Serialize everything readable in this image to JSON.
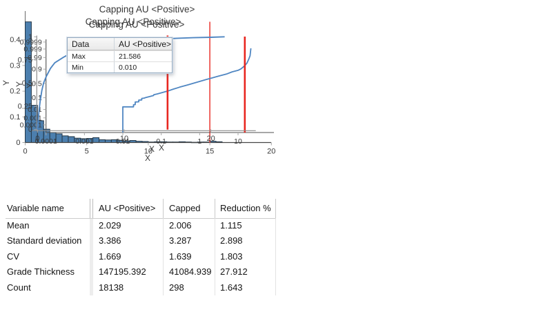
{
  "window": {
    "background": "#ffffff"
  },
  "colors": {
    "bar_fill": "#4c7fae",
    "bar_stroke": "#233748",
    "curve": "#4f86c2",
    "cap_line": "#e8261f",
    "axis_dark": "#4f4f4f",
    "axis_light": "#8c8c8c",
    "tick_mark": "#a6a6a6",
    "tick_text": "#3a3a3a",
    "title_text": "#383838"
  },
  "chart_data": [
    {
      "type": "bar",
      "name": "histogram",
      "title": "Capping AU <Positive>",
      "xlabel": "X",
      "ylabel": "Y",
      "xlim": [
        0,
        20
      ],
      "ylim": [
        0,
        0.47
      ],
      "x_ticks": [
        0,
        5,
        10,
        15,
        20
      ],
      "y_ticks": [
        0,
        0.1,
        0.2,
        0.3,
        0.4
      ],
      "bar_start_x": 0,
      "bar_width": 0.5,
      "values": [
        0.47,
        0.145,
        0.085,
        0.052,
        0.039,
        0.034,
        0.026,
        0.023,
        0.017,
        0.015,
        0.016,
        0.019,
        0.011,
        0.01,
        0.011,
        0.009,
        0.006,
        0.008,
        0.005,
        0.004,
        0.002,
        0.003,
        0.003,
        0.002,
        0.002,
        0.003,
        0.002,
        0.001,
        0.002,
        0.002,
        0.005,
        0.003
      ],
      "cap_line_x": 15,
      "tooltip": {
        "header": [
          "Data",
          "AU <Positive>"
        ],
        "rows": [
          [
            "Max",
            "21.586"
          ],
          [
            "Min",
            "0.010"
          ]
        ]
      }
    },
    {
      "type": "line",
      "name": "log-probability-plot",
      "title": "Capping AU <Positive>",
      "xlabel": "X",
      "ylabel": "Y",
      "x_scale": "log",
      "y_scale": "probit",
      "x_ticks": [
        "0.0001",
        "0.001",
        "0.01",
        "0.1",
        "1",
        "10"
      ],
      "y_ticks": [
        "0.9999",
        "0.999",
        "0.99",
        "0.9",
        "0.5",
        "0.1",
        "0.01",
        "0.001",
        "0.0001"
      ],
      "points": [
        [
          0.01,
          5e-06
        ],
        [
          0.01,
          0.018
        ],
        [
          0.019,
          0.018
        ],
        [
          0.019,
          0.028
        ],
        [
          0.021,
          0.029
        ],
        [
          0.021,
          0.048
        ],
        [
          0.026,
          0.05
        ],
        [
          0.026,
          0.068
        ],
        [
          0.031,
          0.07
        ],
        [
          0.031,
          0.09
        ],
        [
          0.036,
          0.095
        ],
        [
          0.04,
          0.105
        ],
        [
          0.05,
          0.12
        ],
        [
          0.063,
          0.14
        ],
        [
          0.064,
          0.155
        ],
        [
          0.08,
          0.175
        ],
        [
          0.1,
          0.2
        ],
        [
          0.15,
          0.25
        ],
        [
          0.2,
          0.3
        ],
        [
          0.3,
          0.37
        ],
        [
          0.5,
          0.45
        ],
        [
          0.7,
          0.51
        ],
        [
          1,
          0.57
        ],
        [
          1.5,
          0.64
        ],
        [
          2,
          0.68
        ],
        [
          3,
          0.74
        ],
        [
          5,
          0.8
        ],
        [
          7,
          0.85
        ],
        [
          10,
          0.88
        ],
        [
          12,
          0.905
        ],
        [
          15,
          0.945
        ],
        [
          17,
          0.965
        ],
        [
          19,
          0.985
        ],
        [
          20.5,
          0.9935
        ],
        [
          21.586,
          0.9992
        ]
      ],
      "cap_line_x": 15
    },
    {
      "type": "line",
      "name": "cumulative-distribution",
      "title": "Capping AU <Positive>",
      "xlabel": "X",
      "ylabel": "Y",
      "xlim": [
        0,
        25
      ],
      "ylim": [
        0,
        1
      ],
      "x_ticks": [
        0,
        10,
        20
      ],
      "y_ticks": [
        0,
        0.25,
        0.5,
        0.75,
        1
      ],
      "points": [
        [
          0,
          0
        ],
        [
          0.05,
          0.06
        ],
        [
          0.1,
          0.12
        ],
        [
          0.2,
          0.22
        ],
        [
          0.3,
          0.3
        ],
        [
          0.5,
          0.42
        ],
        [
          0.7,
          0.5
        ],
        [
          1,
          0.57
        ],
        [
          1.5,
          0.66
        ],
        [
          2,
          0.72
        ],
        [
          2.5,
          0.75
        ],
        [
          3,
          0.78
        ],
        [
          4,
          0.83
        ],
        [
          5,
          0.86
        ],
        [
          6,
          0.89
        ],
        [
          7,
          0.91
        ],
        [
          8,
          0.925
        ],
        [
          10,
          0.95
        ],
        [
          12,
          0.965
        ],
        [
          15,
          0.98
        ],
        [
          18,
          0.99
        ],
        [
          20,
          0.995
        ],
        [
          21.586,
          1
        ]
      ],
      "cap_line_x": 15
    },
    {
      "type": "table",
      "name": "capping-statistics",
      "columns": [
        "Variable name",
        "AU <Positive>",
        "Capped",
        "Reduction %"
      ],
      "rows": [
        [
          "Mean",
          "2.029",
          "2.006",
          "1.115"
        ],
        [
          "Standard deviation",
          "3.386",
          "3.287",
          "2.898"
        ],
        [
          "CV",
          "1.669",
          "1.639",
          "1.803"
        ],
        [
          "Grade Thickness",
          "147195.392",
          "41084.939",
          "27.912"
        ],
        [
          "Count",
          "18138",
          "298",
          "1.643"
        ]
      ]
    }
  ]
}
